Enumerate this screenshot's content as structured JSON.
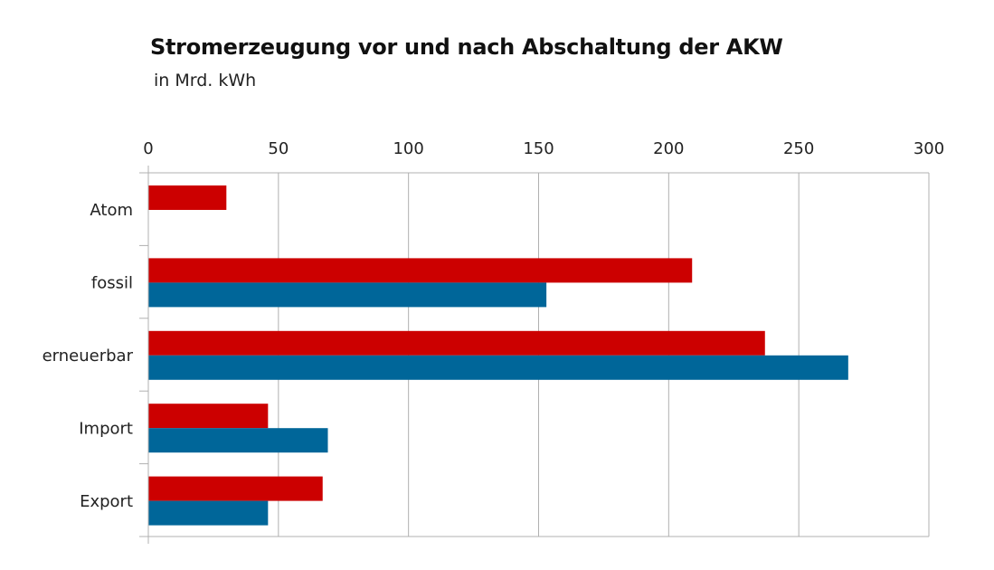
{
  "chart_data": {
    "type": "bar",
    "orientation": "horizontal",
    "title": "Stromerzeugung vor und nach Abschaltung der AKW",
    "subtitle": "in Mrd. kWh",
    "categories": [
      "Atom",
      "fossil",
      "erneuerbar",
      "Import",
      "Export"
    ],
    "series": [
      {
        "color": "#cc0000",
        "values": [
          30,
          209,
          237,
          46,
          67
        ]
      },
      {
        "color": "#006699",
        "values": [
          0,
          153,
          269,
          69,
          46
        ]
      }
    ],
    "xlim": [
      0,
      300
    ],
    "xticks": [
      0,
      50,
      100,
      150,
      200,
      250,
      300
    ],
    "xtick_position": "top",
    "grid": true,
    "legend": "none"
  }
}
